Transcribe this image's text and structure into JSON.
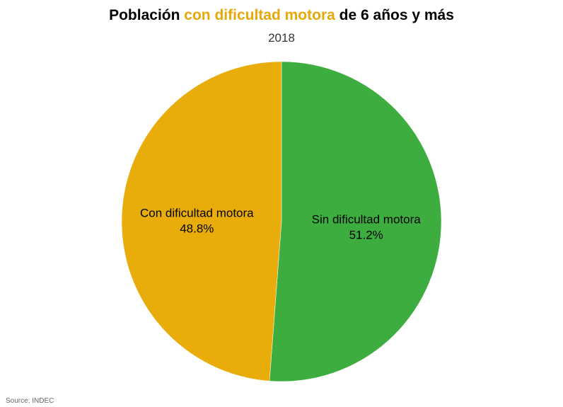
{
  "header": {
    "title_prefix": "Población",
    "title_highlight": "con dificultad motora",
    "title_suffix": "de 6 años y más",
    "subtitle": "2018"
  },
  "footer": {
    "source": "Source: INDEC"
  },
  "colors": {
    "highlight": "#E8A808",
    "con": "#E8AC0B",
    "sin": "#3DAD3F"
  },
  "chart_data": {
    "type": "pie",
    "title": "Población con dificultad motora de 6 años y más",
    "subtitle": "2018",
    "slices": [
      {
        "label": "Sin dificultad motora",
        "value": 51.2,
        "display": "51.2%",
        "color": "#3DAD3F"
      },
      {
        "label": "Con dificultad motora",
        "value": 48.8,
        "display": "48.8%",
        "color": "#E8AC0B"
      }
    ],
    "start": "12 o'clock",
    "direction": "clockwise",
    "legend": "none"
  }
}
